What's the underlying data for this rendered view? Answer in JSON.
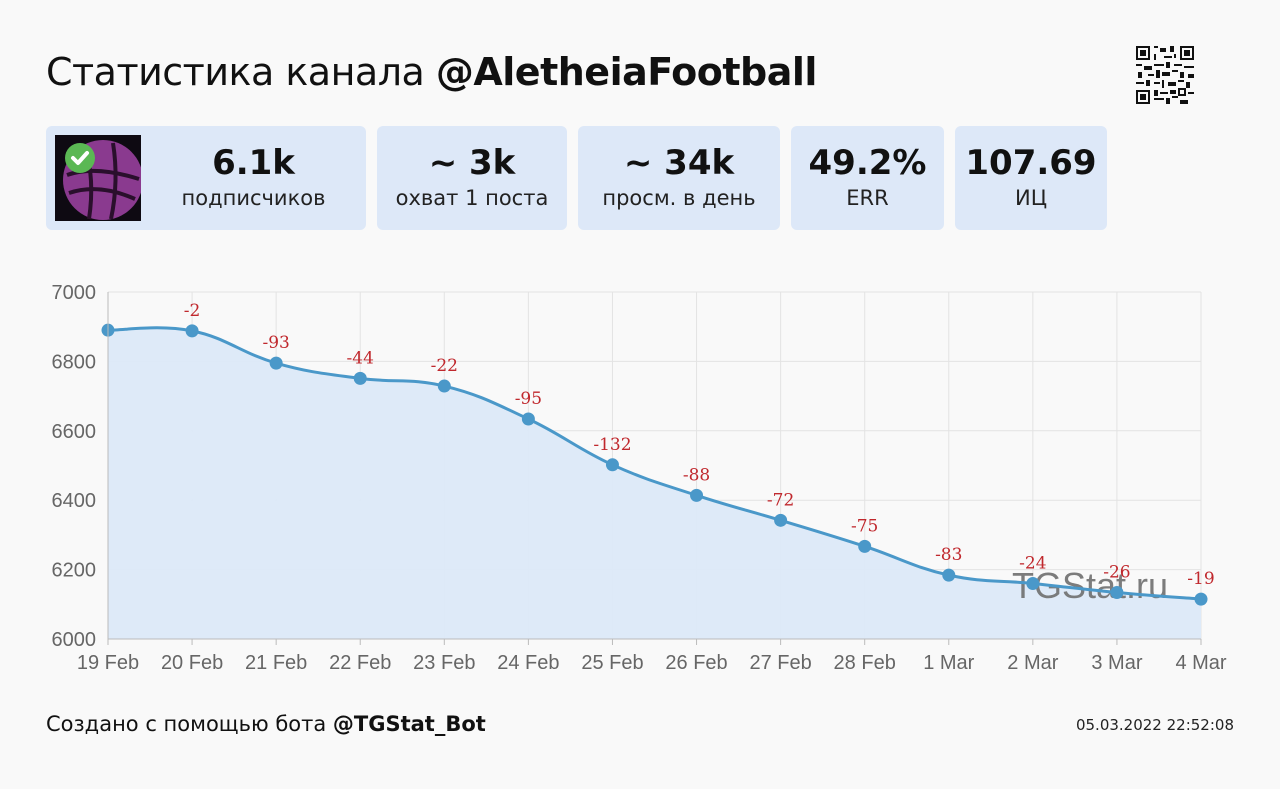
{
  "header": {
    "title_prefix": "Статистика канала",
    "title_handle": "@AletheiaFootball"
  },
  "stats": [
    {
      "value": "6.1k",
      "label": "подписчиков"
    },
    {
      "value": "~ 3k",
      "label": "охват 1 поста"
    },
    {
      "value": "~ 34k",
      "label": "просм. в день"
    },
    {
      "value": "49.2%",
      "label": "ERR"
    },
    {
      "value": "107.69",
      "label": "ИЦ"
    }
  ],
  "chart_data": {
    "type": "area",
    "x": [
      "19 Feb",
      "20 Feb",
      "21 Feb",
      "22 Feb",
      "23 Feb",
      "24 Feb",
      "25 Feb",
      "26 Feb",
      "27 Feb",
      "28 Feb",
      "1 Mar",
      "2 Mar",
      "3 Mar",
      "4 Mar"
    ],
    "values": [
      6890,
      6888,
      6795,
      6751,
      6729,
      6634,
      6502,
      6414,
      6342,
      6267,
      6184,
      6160,
      6134,
      6115
    ],
    "data_labels": [
      "",
      "-2",
      "-93",
      "-44",
      "-22",
      "-95",
      "-132",
      "-88",
      "-72",
      "-75",
      "-83",
      "-24",
      "-26",
      "-19"
    ],
    "y_ticks": [
      "7000",
      "6800",
      "6600",
      "6400",
      "6200",
      "6000"
    ],
    "ylim": [
      6000,
      7000
    ],
    "grid": true,
    "watermark": "TGStat.ru",
    "colors": {
      "line": "#4a98c9",
      "fill": "#dce9f8",
      "label": "#c0282d",
      "grid": "#e3e3e3"
    }
  },
  "footer": {
    "prefix": "Создано с помощью бота",
    "bot": "@TGStat_Bot",
    "timestamp": "05.03.2022 22:52:08"
  }
}
